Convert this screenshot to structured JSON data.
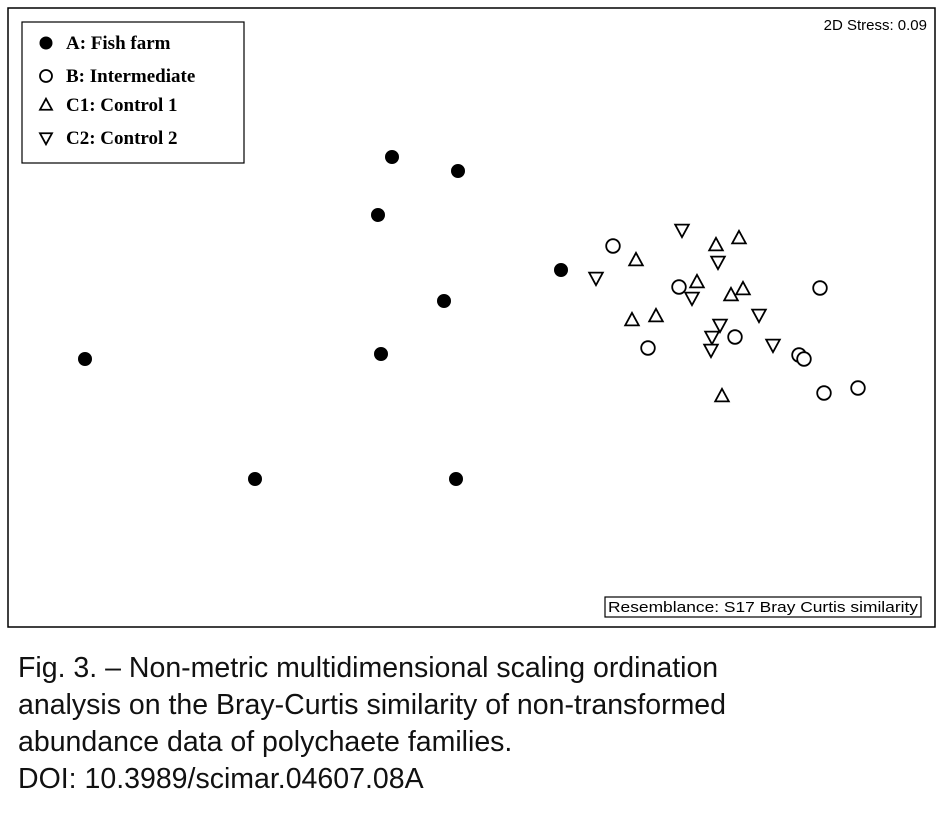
{
  "chart_data": {
    "type": "scatter",
    "stress_label": "2D Stress: 0.09",
    "resemblance_label": "Resemblance: S17 Bray Curtis similarity",
    "series": [
      {
        "name": "A: Fish farm",
        "marker": "filled-circle",
        "points": [
          [
            85,
            359
          ],
          [
            392,
            157
          ],
          [
            458,
            171
          ],
          [
            378,
            215
          ],
          [
            561,
            270
          ],
          [
            444,
            301
          ],
          [
            381,
            354
          ],
          [
            255,
            479
          ],
          [
            456,
            479
          ]
        ]
      },
      {
        "name": "B: Intermediate",
        "marker": "open-circle",
        "points": [
          [
            613,
            246
          ],
          [
            679,
            287
          ],
          [
            820,
            288
          ],
          [
            648,
            348
          ],
          [
            735,
            337
          ],
          [
            799,
            355
          ],
          [
            804,
            359
          ],
          [
            824,
            393
          ],
          [
            858,
            388
          ]
        ]
      },
      {
        "name": "C1: Control 1",
        "marker": "triangle-up",
        "points": [
          [
            636,
            260
          ],
          [
            716,
            245
          ],
          [
            739,
            238
          ],
          [
            697,
            282
          ],
          [
            731,
            295
          ],
          [
            743,
            289
          ],
          [
            632,
            320
          ],
          [
            656,
            316
          ],
          [
            722,
            396
          ]
        ]
      },
      {
        "name": "C2: Control 2",
        "marker": "triangle-down",
        "points": [
          [
            682,
            230
          ],
          [
            718,
            262
          ],
          [
            596,
            278
          ],
          [
            692,
            298
          ],
          [
            759,
            315
          ],
          [
            720,
            325
          ],
          [
            712,
            337
          ],
          [
            711,
            350
          ],
          [
            773,
            345
          ]
        ]
      }
    ]
  },
  "caption": {
    "lines": [
      "Fig. 3. – Non-metric multidimensional scaling ordination",
      "analysis on the Bray-Curtis similarity of non-transformed",
      "abundance data of polychaete families.",
      "DOI: 10.3989/scimar.04607.08A"
    ]
  }
}
